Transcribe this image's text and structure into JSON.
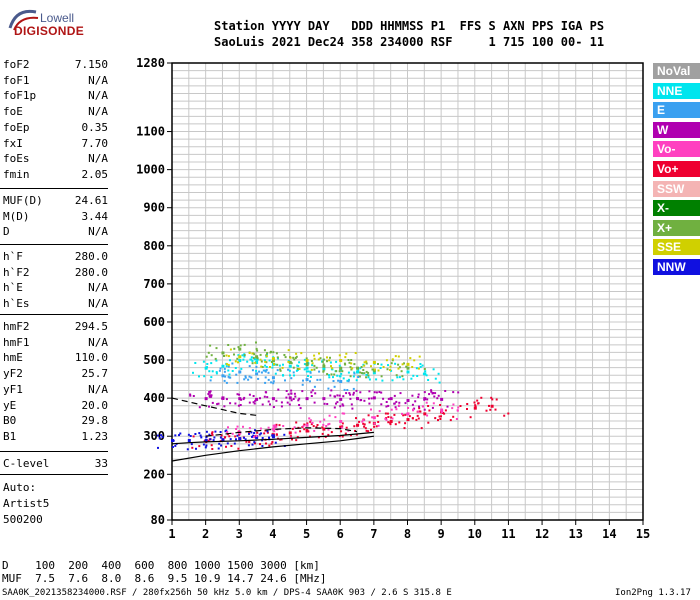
{
  "logo": {
    "line1": "Lowell",
    "line2": "DIGISONDE"
  },
  "header": {
    "row1": "Station YYYY DAY   DDD HHMMSS P1  FFS S AXN PPS IGA PS",
    "row2": "SaoLuis 2021 Dec24 358 234000 RSF     1 715 100 00- 11"
  },
  "params_group1": [
    {
      "name": "foF2",
      "value": "7.150"
    },
    {
      "name": "foF1",
      "value": "N/A"
    },
    {
      "name": "foF1p",
      "value": "N/A"
    },
    {
      "name": "foE",
      "value": "N/A"
    },
    {
      "name": "foEp",
      "value": "0.35"
    },
    {
      "name": "fxI",
      "value": "7.70"
    },
    {
      "name": "foEs",
      "value": "N/A"
    },
    {
      "name": "fmin",
      "value": "2.05"
    }
  ],
  "params_group2": [
    {
      "name": "MUF(D)",
      "value": "24.61"
    },
    {
      "name": "M(D)",
      "value": "3.44"
    },
    {
      "name": "D",
      "value": "N/A"
    }
  ],
  "params_group3": [
    {
      "name": "h`F",
      "value": "280.0"
    },
    {
      "name": "h`F2",
      "value": "280.0"
    },
    {
      "name": "h`E",
      "value": "N/A"
    },
    {
      "name": "h`Es",
      "value": "N/A"
    }
  ],
  "params_group4": [
    {
      "name": "hmF2",
      "value": "294.5"
    },
    {
      "name": "hmF1",
      "value": "N/A"
    },
    {
      "name": "hmE",
      "value": "110.0"
    },
    {
      "name": "yF2",
      "value": "25.7"
    },
    {
      "name": "yF1",
      "value": "N/A"
    },
    {
      "name": "yE",
      "value": "20.0"
    },
    {
      "name": "B0",
      "value": "29.8"
    },
    {
      "name": "B1",
      "value": "1.23"
    }
  ],
  "clevel": {
    "name": "C-level",
    "value": "33"
  },
  "auto": {
    "line1": "Auto:",
    "line2": "Artist5",
    "line3": "500200"
  },
  "legend": [
    {
      "label": "NoVal",
      "color": "#a0a0a0"
    },
    {
      "label": "NNE",
      "color": "#00e5ee"
    },
    {
      "label": "E",
      "color": "#3aa0f0"
    },
    {
      "label": "W",
      "color": "#b000b0"
    },
    {
      "label": "Vo-",
      "color": "#ff40c0"
    },
    {
      "label": "Vo+",
      "color": "#ee0030"
    },
    {
      "label": "SSW",
      "color": "#f4b4b4"
    },
    {
      "label": "X-",
      "color": "#008000"
    },
    {
      "label": "X+",
      "color": "#70b040"
    },
    {
      "label": "SSE",
      "color": "#d0d000"
    },
    {
      "label": "NNW",
      "color": "#1010e0"
    }
  ],
  "footer": {
    "d_row": "D    100  200  400  600  800 1000 1500 3000 [km]",
    "muf_row": "MUF  7.5  7.6  8.0  8.6  9.5 10.9 14.7 24.6 [MHz]",
    "info": "SAA0K_2021358234000.RSF / 280fx256h 50 kHz 5.0 km / DPS-4 SAA0K 903 / 2.6 S 315.8 E",
    "version": "Ion2Png 1.3.17"
  },
  "chart_data": {
    "type": "scatter",
    "title": "",
    "xlabel": "",
    "ylabel": "",
    "xlim": [
      1,
      15
    ],
    "ylim": [
      80,
      1280
    ],
    "x_ticks": [
      "1",
      "2",
      "3",
      "4",
      "5",
      "6",
      "7",
      "8",
      "9",
      "10",
      "11",
      "12",
      "13",
      "14",
      "15"
    ],
    "y_ticks": [
      "1280",
      "1100",
      "1000",
      "900",
      "800",
      "700",
      "600",
      "500",
      "400",
      "300",
      "200",
      "80"
    ],
    "y_tick_values": [
      1280,
      1100,
      1000,
      900,
      800,
      700,
      600,
      500,
      400,
      300,
      200,
      80
    ],
    "grid": true,
    "legend_position": "right",
    "series": [
      {
        "name": "Vo+",
        "color": "#ee0030",
        "x": [
          2.0,
          2.5,
          3.0,
          3.5,
          4.0,
          4.5,
          5.0,
          5.5,
          6.0,
          6.5,
          7.0,
          7.5,
          8.0,
          8.5,
          9.0,
          10.0,
          10.5
        ],
        "y": [
          290,
          292,
          295,
          300,
          305,
          310,
          315,
          320,
          325,
          330,
          335,
          340,
          345,
          360,
          365,
          375,
          380
        ]
      },
      {
        "name": "W",
        "color": "#b000b0",
        "x": [
          2.0,
          2.5,
          3.0,
          3.5,
          4.0,
          4.5,
          5.0,
          5.5,
          6.0,
          6.5,
          7.0,
          7.5,
          8.0,
          8.5,
          9.0
        ],
        "y": [
          400,
          402,
          400,
          398,
          400,
          402,
          400,
          400,
          398,
          400,
          402,
          400,
          395,
          400,
          398
        ]
      },
      {
        "name": "NNE",
        "color": "#00e5ee",
        "x": [
          2.0,
          2.5,
          3.0,
          3.5,
          4.0,
          4.5,
          5.0,
          5.5,
          6.0,
          6.5,
          7.0,
          8.0,
          8.5
        ],
        "y": [
          480,
          485,
          500,
          495,
          490,
          485,
          480,
          478,
          475,
          470,
          468,
          470,
          465
        ]
      },
      {
        "name": "X+",
        "color": "#70b040",
        "x": [
          2.5,
          3.0,
          3.5,
          4.0,
          4.5,
          5.0,
          5.5,
          6.0,
          6.5,
          7.0,
          8.0
        ],
        "y": [
          520,
          530,
          510,
          500,
          495,
          490,
          485,
          480,
          480,
          475,
          480
        ]
      },
      {
        "name": "NNW",
        "color": "#1010e0",
        "x": [
          1.0,
          1.5,
          2.0,
          2.5,
          3.0,
          3.5,
          4.0
        ],
        "y": [
          290,
          290,
          290,
          292,
          295,
          298,
          300
        ]
      },
      {
        "name": "Vo-",
        "color": "#ff40c0",
        "x": [
          3.0,
          4.0,
          5.0,
          6.0,
          7.0,
          8.0,
          9.0
        ],
        "y": [
          310,
          320,
          330,
          340,
          350,
          360,
          370
        ]
      },
      {
        "name": "E",
        "color": "#3aa0f0",
        "x": [
          2.5,
          3.0,
          3.5,
          4.0,
          5.0,
          6.0
        ],
        "y": [
          460,
          470,
          465,
          455,
          450,
          445
        ]
      },
      {
        "name": "SSE",
        "color": "#d0d000",
        "x": [
          3.0,
          4.0,
          5.0,
          6.0,
          7.0,
          8.0
        ],
        "y": [
          510,
          505,
          500,
          500,
          495,
          490
        ]
      }
    ],
    "lines": [
      {
        "x": [
          1.0,
          2.0,
          3.0,
          4.0,
          5.0,
          6.0,
          6.6,
          7.0
        ],
        "y": [
          235,
          250,
          262,
          272,
          280,
          288,
          295,
          300
        ]
      },
      {
        "x": [
          1.0,
          1.5,
          2.0,
          3.0,
          4.0,
          5.0,
          6.0,
          7.0
        ],
        "y": [
          280,
          283,
          285,
          288,
          292,
          297,
          302,
          310
        ]
      },
      {
        "x": [
          2.0,
          2.5,
          3.0,
          4.0,
          5.0,
          6.0,
          6.5
        ],
        "y": [
          300,
          305,
          310,
          318,
          322,
          320,
          312
        ],
        "dashed": true
      },
      {
        "x": [
          1.0,
          1.5,
          2.0,
          2.5,
          3.0,
          3.5
        ],
        "y": [
          400,
          390,
          380,
          370,
          360,
          355
        ],
        "dashed": true
      }
    ]
  }
}
